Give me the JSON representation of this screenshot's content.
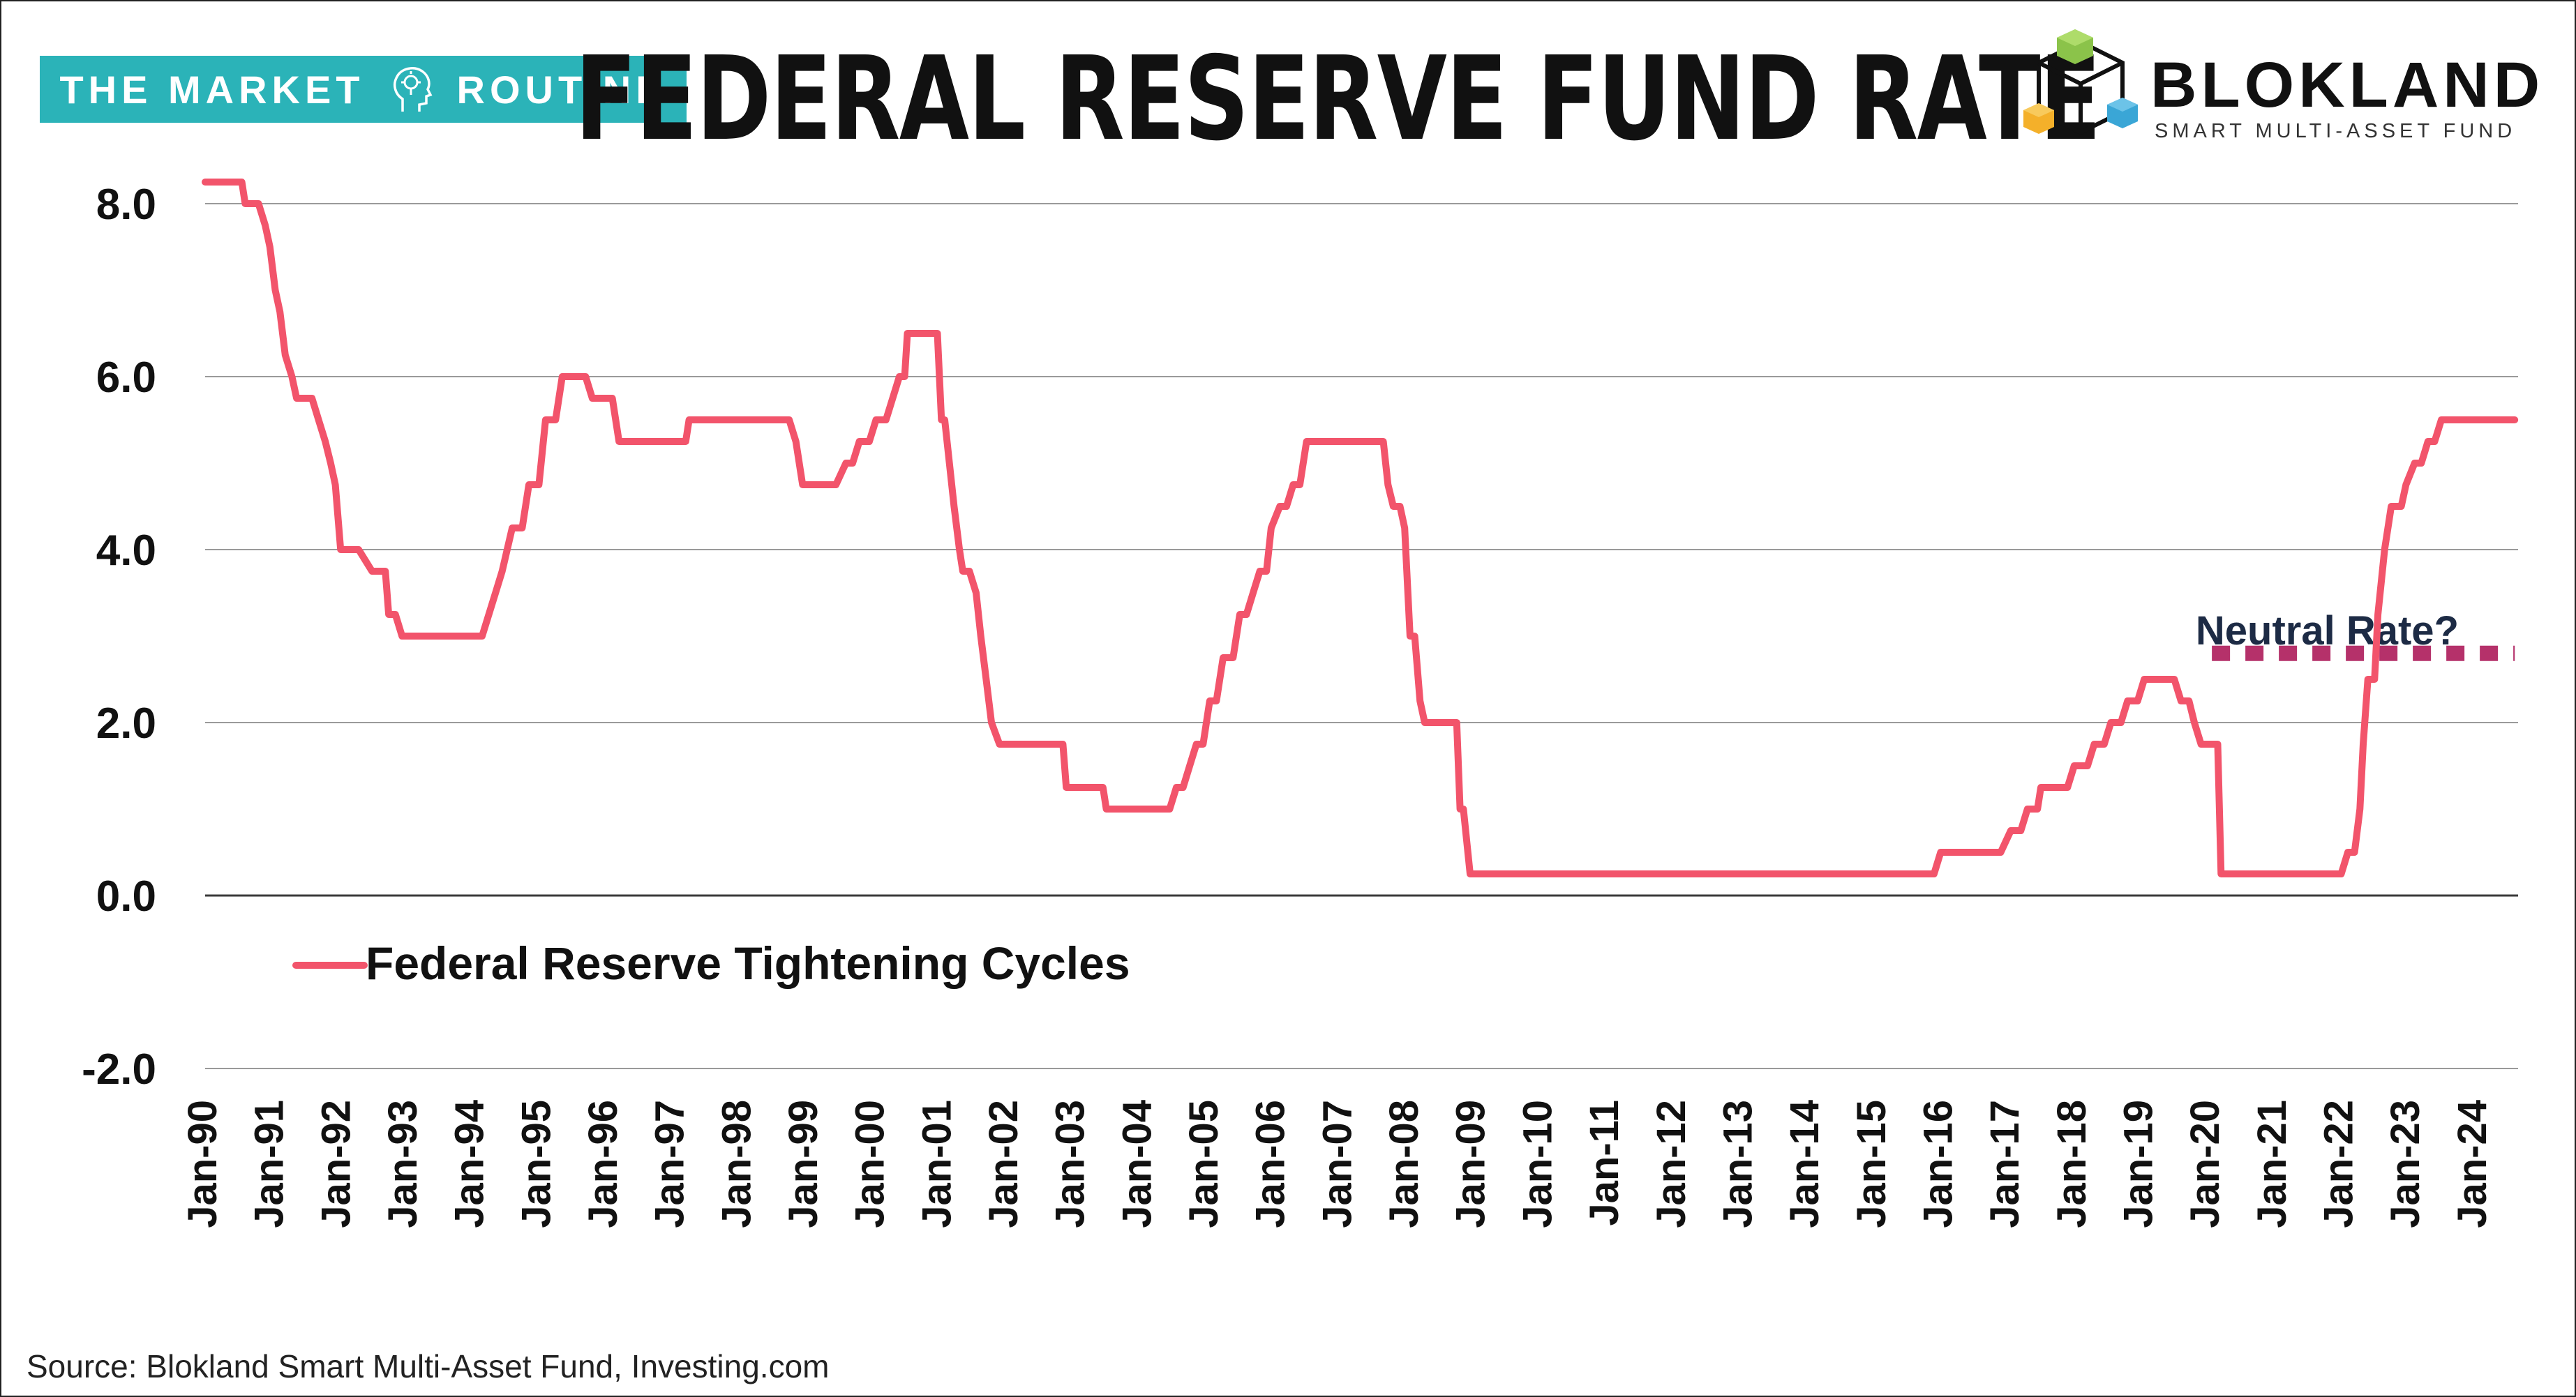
{
  "header": {
    "left_brand_part1": "THE MARKET",
    "left_brand_part2": "ROUTINE",
    "title": "FEDERAL RESERVE FUND RATE",
    "right_brand_name": "BLOKLAND",
    "right_brand_sub": "SMART MULTI-ASSET FUND"
  },
  "source": "Source: Blokland Smart Multi-Asset Fund, Investing.com",
  "colors": {
    "line": "#f2546b",
    "neutral": "#b5316a",
    "annotation_text": "#1d2b45",
    "brand_teal": "#2bb3b8"
  },
  "chart_data": {
    "type": "line",
    "title": "FEDERAL RESERVE FUND RATE",
    "xlabel": "",
    "ylabel": "",
    "ylim": [
      -2.0,
      8.0
    ],
    "yticks": [
      "8.0",
      "6.0",
      "4.0",
      "2.0",
      "0.0",
      "-2.0"
    ],
    "xticks": [
      "Jan-90",
      "Jan-91",
      "Jan-92",
      "Jan-93",
      "Jan-94",
      "Jan-95",
      "Jan-96",
      "Jan-97",
      "Jan-98",
      "Jan-99",
      "Jan-00",
      "Jan-01",
      "Jan-02",
      "Jan-03",
      "Jan-04",
      "Jan-05",
      "Jan-06",
      "Jan-07",
      "Jan-08",
      "Jan-09",
      "Jan-10",
      "Jan-11",
      "Jan-12",
      "Jan-13",
      "Jan-14",
      "Jan-15",
      "Jan-16",
      "Jan-17",
      "Jan-18",
      "Jan-19",
      "Jan-20",
      "Jan-21",
      "Jan-22",
      "Jan-23",
      "Jan-24"
    ],
    "x_start_year": 1990,
    "grid": true,
    "legend_position": "bottom-left",
    "series": [
      {
        "name": "Federal Reserve Tightening Cycles",
        "points": [
          [
            1990.0,
            8.25
          ],
          [
            1990.55,
            8.25
          ],
          [
            1990.6,
            8.0
          ],
          [
            1990.8,
            8.0
          ],
          [
            1990.9,
            7.75
          ],
          [
            1990.97,
            7.5
          ],
          [
            1991.05,
            7.0
          ],
          [
            1991.12,
            6.75
          ],
          [
            1991.2,
            6.25
          ],
          [
            1991.3,
            6.0
          ],
          [
            1991.37,
            5.75
          ],
          [
            1991.6,
            5.75
          ],
          [
            1991.7,
            5.5
          ],
          [
            1991.8,
            5.25
          ],
          [
            1991.88,
            5.0
          ],
          [
            1991.95,
            4.75
          ],
          [
            1992.03,
            4.0
          ],
          [
            1992.3,
            4.0
          ],
          [
            1992.5,
            3.75
          ],
          [
            1992.7,
            3.75
          ],
          [
            1992.75,
            3.25
          ],
          [
            1992.85,
            3.25
          ],
          [
            1992.95,
            3.0
          ],
          [
            1994.0,
            3.0
          ],
          [
            1994.15,
            3.0
          ],
          [
            1994.25,
            3.25
          ],
          [
            1994.35,
            3.5
          ],
          [
            1994.45,
            3.75
          ],
          [
            1994.6,
            4.25
          ],
          [
            1994.75,
            4.25
          ],
          [
            1994.85,
            4.75
          ],
          [
            1995.0,
            4.75
          ],
          [
            1995.1,
            5.5
          ],
          [
            1995.25,
            5.5
          ],
          [
            1995.35,
            6.0
          ],
          [
            1995.7,
            6.0
          ],
          [
            1995.8,
            5.75
          ],
          [
            1996.1,
            5.75
          ],
          [
            1996.2,
            5.25
          ],
          [
            1997.2,
            5.25
          ],
          [
            1997.25,
            5.5
          ],
          [
            1998.75,
            5.5
          ],
          [
            1998.85,
            5.25
          ],
          [
            1998.95,
            4.75
          ],
          [
            1999.45,
            4.75
          ],
          [
            1999.6,
            5.0
          ],
          [
            1999.7,
            5.0
          ],
          [
            1999.8,
            5.25
          ],
          [
            1999.95,
            5.25
          ],
          [
            2000.05,
            5.5
          ],
          [
            2000.2,
            5.5
          ],
          [
            2000.3,
            5.75
          ],
          [
            2000.4,
            6.0
          ],
          [
            2000.48,
            6.0
          ],
          [
            2000.52,
            6.5
          ],
          [
            2000.97,
            6.5
          ],
          [
            2001.03,
            5.5
          ],
          [
            2001.08,
            5.5
          ],
          [
            2001.15,
            5.0
          ],
          [
            2001.22,
            4.5
          ],
          [
            2001.3,
            4.0
          ],
          [
            2001.35,
            3.75
          ],
          [
            2001.45,
            3.75
          ],
          [
            2001.55,
            3.5
          ],
          [
            2001.62,
            3.0
          ],
          [
            2001.7,
            2.5
          ],
          [
            2001.78,
            2.0
          ],
          [
            2001.9,
            1.75
          ],
          [
            2002.85,
            1.75
          ],
          [
            2002.9,
            1.25
          ],
          [
            2003.45,
            1.25
          ],
          [
            2003.5,
            1.0
          ],
          [
            2004.45,
            1.0
          ],
          [
            2004.55,
            1.25
          ],
          [
            2004.65,
            1.25
          ],
          [
            2004.75,
            1.5
          ],
          [
            2004.85,
            1.75
          ],
          [
            2004.95,
            1.75
          ],
          [
            2005.05,
            2.25
          ],
          [
            2005.15,
            2.25
          ],
          [
            2005.25,
            2.75
          ],
          [
            2005.4,
            2.75
          ],
          [
            2005.5,
            3.25
          ],
          [
            2005.6,
            3.25
          ],
          [
            2005.7,
            3.5
          ],
          [
            2005.8,
            3.75
          ],
          [
            2005.9,
            3.75
          ],
          [
            2005.97,
            4.25
          ],
          [
            2006.1,
            4.5
          ],
          [
            2006.2,
            4.5
          ],
          [
            2006.3,
            4.75
          ],
          [
            2006.4,
            4.75
          ],
          [
            2006.5,
            5.25
          ],
          [
            2007.65,
            5.25
          ],
          [
            2007.72,
            4.75
          ],
          [
            2007.8,
            4.5
          ],
          [
            2007.9,
            4.5
          ],
          [
            2007.97,
            4.25
          ],
          [
            2008.05,
            3.0
          ],
          [
            2008.12,
            3.0
          ],
          [
            2008.2,
            2.25
          ],
          [
            2008.27,
            2.0
          ],
          [
            2008.75,
            2.0
          ],
          [
            2008.8,
            1.0
          ],
          [
            2008.85,
            1.0
          ],
          [
            2008.95,
            0.25
          ],
          [
            2015.9,
            0.25
          ],
          [
            2016.0,
            0.5
          ],
          [
            2016.9,
            0.5
          ],
          [
            2017.05,
            0.75
          ],
          [
            2017.2,
            0.75
          ],
          [
            2017.3,
            1.0
          ],
          [
            2017.45,
            1.0
          ],
          [
            2017.5,
            1.25
          ],
          [
            2017.9,
            1.25
          ],
          [
            2018.0,
            1.5
          ],
          [
            2018.2,
            1.5
          ],
          [
            2018.3,
            1.75
          ],
          [
            2018.45,
            1.75
          ],
          [
            2018.55,
            2.0
          ],
          [
            2018.7,
            2.0
          ],
          [
            2018.8,
            2.25
          ],
          [
            2018.95,
            2.25
          ],
          [
            2019.05,
            2.5
          ],
          [
            2019.5,
            2.5
          ],
          [
            2019.6,
            2.25
          ],
          [
            2019.72,
            2.25
          ],
          [
            2019.8,
            2.0
          ],
          [
            2019.9,
            1.75
          ],
          [
            2020.15,
            1.75
          ],
          [
            2020.2,
            0.25
          ],
          [
            2022.0,
            0.25
          ],
          [
            2022.1,
            0.5
          ],
          [
            2022.2,
            0.5
          ],
          [
            2022.28,
            1.0
          ],
          [
            2022.33,
            1.75
          ],
          [
            2022.4,
            2.5
          ],
          [
            2022.5,
            2.5
          ],
          [
            2022.55,
            3.25
          ],
          [
            2022.65,
            4.0
          ],
          [
            2022.75,
            4.5
          ],
          [
            2022.9,
            4.5
          ],
          [
            2022.97,
            4.75
          ],
          [
            2023.1,
            5.0
          ],
          [
            2023.2,
            5.0
          ],
          [
            2023.3,
            5.25
          ],
          [
            2023.4,
            5.25
          ],
          [
            2023.5,
            5.5
          ],
          [
            2024.6,
            5.5
          ]
        ]
      }
    ],
    "annotations": [
      {
        "text": "Neutral Rate?",
        "y": 2.8,
        "x_start": 2020.0,
        "x_end": 2024.6,
        "style": "dotted"
      }
    ]
  }
}
